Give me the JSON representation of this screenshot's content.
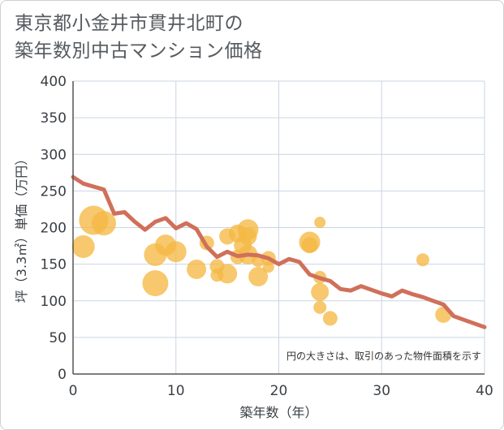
{
  "title_lines": [
    "東京都小金井市貫井北町の",
    "築年数別中古マンション価格"
  ],
  "chart_data": {
    "type": "scatter",
    "title": "東京都小金井市貫井北町の築年数別中古マンション価格",
    "xlabel": "築年数（年）",
    "ylabel": "坪（3.3㎡）単価（万円）",
    "xlim": [
      0,
      40
    ],
    "ylim": [
      0,
      400
    ],
    "x_ticks": [
      0,
      10,
      20,
      30,
      40
    ],
    "y_ticks": [
      0,
      50,
      100,
      150,
      200,
      250,
      300,
      350,
      400
    ],
    "grid": true,
    "annotation": "円の大きさは、取引のあった物件面積を示す",
    "colors": {
      "points": "#f5b944",
      "trend": "#d0705a",
      "grid": "#c9d6e2",
      "plot_bg": "#ffffff"
    },
    "series": [
      {
        "kind": "bubbles",
        "points": [
          {
            "x": 1,
            "y": 174,
            "size": 14
          },
          {
            "x": 2,
            "y": 210,
            "size": 18
          },
          {
            "x": 3,
            "y": 206,
            "size": 15
          },
          {
            "x": 8,
            "y": 163,
            "size": 14
          },
          {
            "x": 8,
            "y": 124,
            "size": 16
          },
          {
            "x": 9,
            "y": 176,
            "size": 13
          },
          {
            "x": 10,
            "y": 167,
            "size": 13
          },
          {
            "x": 12,
            "y": 143,
            "size": 12
          },
          {
            "x": 13,
            "y": 179,
            "size": 9
          },
          {
            "x": 14,
            "y": 147,
            "size": 9
          },
          {
            "x": 14,
            "y": 135,
            "size": 8
          },
          {
            "x": 15,
            "y": 188,
            "size": 10
          },
          {
            "x": 15,
            "y": 137,
            "size": 12
          },
          {
            "x": 16,
            "y": 192,
            "size": 11
          },
          {
            "x": 16,
            "y": 160,
            "size": 9
          },
          {
            "x": 16.5,
            "y": 176,
            "size": 11
          },
          {
            "x": 17,
            "y": 197,
            "size": 13
          },
          {
            "x": 17,
            "y": 188,
            "size": 11
          },
          {
            "x": 17,
            "y": 163,
            "size": 12
          },
          {
            "x": 18,
            "y": 133,
            "size": 12
          },
          {
            "x": 18,
            "y": 155,
            "size": 8
          },
          {
            "x": 19,
            "y": 158,
            "size": 9
          },
          {
            "x": 19,
            "y": 146,
            "size": 7
          },
          {
            "x": 23,
            "y": 180,
            "size": 13
          },
          {
            "x": 23,
            "y": 176,
            "size": 10
          },
          {
            "x": 24,
            "y": 207,
            "size": 7
          },
          {
            "x": 24,
            "y": 132,
            "size": 8
          },
          {
            "x": 24,
            "y": 112,
            "size": 11
          },
          {
            "x": 24,
            "y": 91,
            "size": 8
          },
          {
            "x": 25,
            "y": 76,
            "size": 9
          },
          {
            "x": 34,
            "y": 156,
            "size": 8
          },
          {
            "x": 36,
            "y": 81,
            "size": 10
          }
        ]
      },
      {
        "kind": "trend-line",
        "x": [
          0,
          1,
          2,
          3,
          4,
          5,
          6,
          7,
          8,
          9,
          10,
          11,
          12,
          13,
          14,
          15,
          16,
          17,
          18,
          19,
          20,
          21,
          22,
          23,
          24,
          25,
          26,
          27,
          28,
          29,
          30,
          31,
          32,
          33,
          34,
          35,
          36,
          37,
          38,
          39,
          40
        ],
        "y": [
          269,
          260,
          256,
          252,
          219,
          221,
          208,
          197,
          208,
          213,
          199,
          206,
          198,
          174,
          160,
          167,
          161,
          163,
          162,
          158,
          150,
          157,
          153,
          136,
          131,
          127,
          116,
          114,
          120,
          115,
          110,
          106,
          114,
          109,
          105,
          100,
          95,
          79,
          74,
          69,
          64
        ]
      }
    ]
  }
}
